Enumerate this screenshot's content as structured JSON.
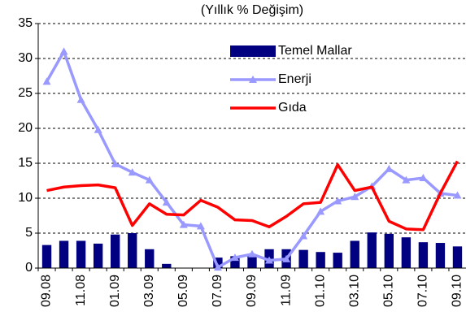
{
  "chart_data": {
    "type": "bar_line",
    "title": "(Yıllık % Değişim)",
    "categories": [
      "09.08",
      null,
      "11.08",
      null,
      "01.09",
      null,
      "03.09",
      null,
      "05.09",
      null,
      "07.09",
      null,
      "09.09",
      null,
      "11.09",
      null,
      "01.10",
      null,
      "03.10",
      null,
      "05.10",
      null,
      "07.10",
      null,
      "09.10"
    ],
    "series": [
      {
        "name": "Temel Mallar",
        "kind": "bar",
        "color": "#000080",
        "values": [
          3.3,
          3.9,
          3.9,
          3.5,
          4.8,
          5.0,
          2.7,
          0.6,
          0,
          0,
          1.5,
          1.7,
          1.9,
          2.7,
          2.7,
          2.6,
          2.3,
          2.2,
          3.9,
          5.1,
          4.9,
          4.4,
          3.7,
          3.6,
          3.1
        ]
      },
      {
        "name": "Enerji",
        "kind": "line",
        "marker": "triangle",
        "color": "#9999ff",
        "values": [
          26.7,
          31.0,
          24.1,
          19.8,
          14.9,
          13.7,
          12.6,
          9.4,
          6.2,
          6.0,
          0.1,
          1.5,
          2.0,
          1.1,
          1.3,
          4.6,
          8.1,
          9.6,
          10.2,
          11.7,
          14.2,
          12.6,
          12.9,
          10.7,
          10.4
        ]
      },
      {
        "name": "Gıda",
        "kind": "line",
        "color": "#ff0000",
        "values": [
          11.1,
          11.6,
          11.8,
          11.9,
          11.5,
          6.1,
          9.2,
          7.7,
          7.6,
          9.7,
          8.7,
          6.9,
          6.8,
          5.9,
          7.4,
          9.2,
          9.4,
          14.8,
          11.1,
          11.6,
          6.7,
          5.6,
          5.5,
          10.7,
          15.3
        ]
      }
    ],
    "ylim": [
      0,
      35
    ],
    "yticks": [
      0,
      5,
      10,
      15,
      20,
      25,
      30,
      35
    ],
    "grid": true,
    "legend": "top-right"
  }
}
